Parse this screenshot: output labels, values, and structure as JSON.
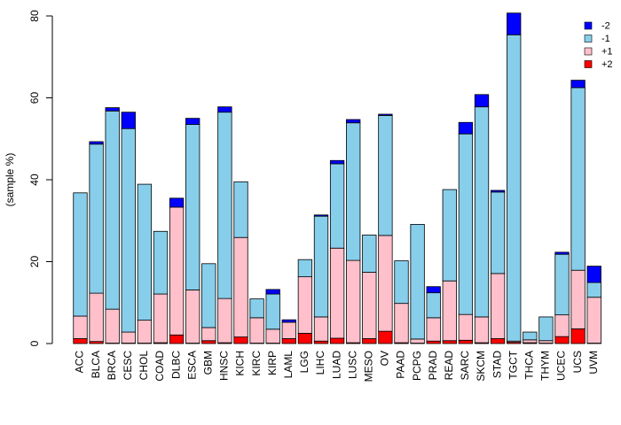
{
  "chart_data": {
    "type": "bar",
    "stacked": true,
    "title": "",
    "xlabel": "",
    "ylabel": "(sample %)",
    "ylim": [
      0,
      80
    ],
    "yticks": [
      0,
      20,
      40,
      60,
      80
    ],
    "grid": false,
    "legend_position": "top-right",
    "categories": [
      "ACC",
      "BLCA",
      "BRCA",
      "CESC",
      "CHOL",
      "COAD",
      "DLBC",
      "ESCA",
      "GBM",
      "HNSC",
      "KICH",
      "KIRC",
      "KIRP",
      "LAML",
      "LGG",
      "LIHC",
      "LUAD",
      "LUSC",
      "MESO",
      "OV",
      "PAAD",
      "PCPG",
      "PRAD",
      "READ",
      "SARC",
      "SKCM",
      "STAD",
      "TGCT",
      "THCA",
      "THYM",
      "UCEC",
      "UCS",
      "UVM"
    ],
    "series": [
      {
        "name": "+2",
        "color": "#ff0000",
        "values": [
          1.2,
          0.5,
          0.1,
          0.1,
          0.1,
          0.2,
          2.1,
          0.1,
          0.7,
          0.2,
          1.6,
          0.1,
          0.1,
          1.2,
          2.5,
          0.6,
          1.3,
          0.2,
          1.2,
          3.0,
          0.2,
          0.1,
          0.6,
          0.7,
          0.8,
          0.2,
          1.2,
          0.3,
          0.2,
          0.1,
          1.7,
          3.6,
          0.1
        ]
      },
      {
        "name": "+1",
        "color": "#ffc0cb",
        "values": [
          5.5,
          11.8,
          8.3,
          2.7,
          5.6,
          11.9,
          31.2,
          13.0,
          3.2,
          10.8,
          24.3,
          6.2,
          3.4,
          4.0,
          13.8,
          5.9,
          22.0,
          20.1,
          16.2,
          23.4,
          9.6,
          1.0,
          5.7,
          14.6,
          6.3,
          6.3,
          15.9,
          0.3,
          0.7,
          0.6,
          5.3,
          14.3,
          11.2
        ]
      },
      {
        "name": "-1",
        "color": "#87ceeb",
        "values": [
          30.1,
          36.4,
          48.4,
          49.7,
          33.2,
          15.3,
          0.0,
          40.4,
          15.6,
          45.5,
          13.6,
          4.6,
          8.6,
          0.0,
          4.2,
          24.6,
          20.6,
          33.6,
          9.1,
          29.3,
          10.4,
          28.0,
          6.1,
          22.3,
          44.1,
          51.3,
          19.9,
          74.8,
          1.9,
          5.8,
          14.8,
          44.6,
          3.6
        ]
      },
      {
        "name": "-2",
        "color": "#0000ff",
        "values": [
          0.0,
          0.6,
          0.8,
          4.0,
          0.0,
          0.0,
          2.2,
          1.5,
          0.0,
          1.3,
          0.0,
          0.0,
          1.1,
          0.6,
          0.0,
          0.3,
          0.8,
          0.8,
          0.0,
          0.3,
          0.0,
          0.0,
          1.5,
          0.0,
          2.8,
          3.0,
          0.4,
          5.3,
          0.0,
          0.0,
          0.5,
          1.8,
          4.0
        ]
      }
    ],
    "legend_order": [
      "-2",
      "-1",
      "+1",
      "+2"
    ]
  }
}
